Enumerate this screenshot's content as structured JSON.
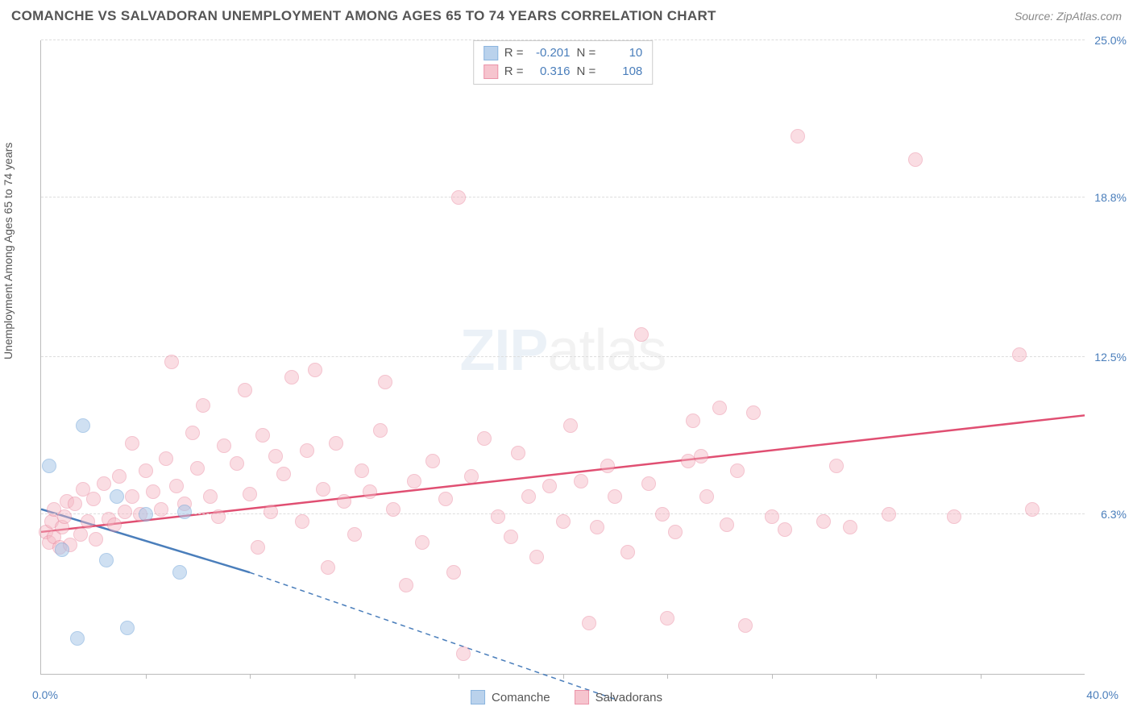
{
  "title": "COMANCHE VS SALVADORAN UNEMPLOYMENT AMONG AGES 65 TO 74 YEARS CORRELATION CHART",
  "source": "Source: ZipAtlas.com",
  "watermark": {
    "prefix": "ZIP",
    "suffix": "atlas"
  },
  "chart": {
    "type": "scatter",
    "y_axis_label": "Unemployment Among Ages 65 to 74 years",
    "xlim": [
      0,
      40
    ],
    "ylim": [
      0,
      25
    ],
    "x_start_label": "0.0%",
    "x_end_label": "40.0%",
    "ytick_labels": [
      "6.3%",
      "12.5%",
      "18.8%",
      "25.0%"
    ],
    "ytick_values": [
      6.3,
      12.5,
      18.8,
      25.0
    ],
    "xtick_values": [
      4,
      8,
      12,
      16,
      20,
      24,
      28,
      32,
      36
    ],
    "grid_color": "#dddddd",
    "axis_color": "#bbbbbb",
    "background_color": "#ffffff",
    "series": [
      {
        "name": "Comanche",
        "label": "Comanche",
        "R_label": "R =",
        "R": "-0.201",
        "N_label": "N =",
        "N": "10",
        "fill_color": "#a9c7e8",
        "fill_opacity": 0.55,
        "stroke_color": "#6fa3d8",
        "line_color": "#4a7ebb",
        "marker_radius": 9,
        "trend": {
          "x1": 0,
          "y1": 6.5,
          "x2": 8,
          "y2": 4.0,
          "solid_until_x": 8,
          "extend_x": 22,
          "extend_y": -1
        },
        "points": [
          [
            0.3,
            8.2
          ],
          [
            0.8,
            4.9
          ],
          [
            1.4,
            1.4
          ],
          [
            1.6,
            9.8
          ],
          [
            2.5,
            4.5
          ],
          [
            2.9,
            7.0
          ],
          [
            3.3,
            1.8
          ],
          [
            4.0,
            6.3
          ],
          [
            5.3,
            4.0
          ],
          [
            5.5,
            6.4
          ]
        ]
      },
      {
        "name": "Salvadorans",
        "label": "Salvadorans",
        "R_label": "R =",
        "R": "0.316",
        "N_label": "N =",
        "N": "108",
        "fill_color": "#f4b6c2",
        "fill_opacity": 0.45,
        "stroke_color": "#e77a94",
        "line_color": "#e04f72",
        "marker_radius": 9,
        "trend": {
          "x1": 0,
          "y1": 5.6,
          "x2": 40,
          "y2": 10.2,
          "solid_until_x": 40
        },
        "points": [
          [
            0.2,
            5.6
          ],
          [
            0.3,
            5.2
          ],
          [
            0.4,
            6.0
          ],
          [
            0.5,
            5.4
          ],
          [
            0.5,
            6.5
          ],
          [
            0.7,
            5.0
          ],
          [
            0.8,
            5.8
          ],
          [
            0.9,
            6.2
          ],
          [
            1.0,
            6.8
          ],
          [
            1.1,
            5.1
          ],
          [
            1.3,
            6.7
          ],
          [
            1.5,
            5.5
          ],
          [
            1.6,
            7.3
          ],
          [
            1.8,
            6.0
          ],
          [
            2.0,
            6.9
          ],
          [
            2.1,
            5.3
          ],
          [
            2.4,
            7.5
          ],
          [
            2.6,
            6.1
          ],
          [
            2.8,
            5.9
          ],
          [
            3.0,
            7.8
          ],
          [
            3.2,
            6.4
          ],
          [
            3.5,
            7.0
          ],
          [
            3.5,
            9.1
          ],
          [
            3.8,
            6.3
          ],
          [
            4.0,
            8.0
          ],
          [
            4.3,
            7.2
          ],
          [
            4.6,
            6.5
          ],
          [
            4.8,
            8.5
          ],
          [
            5.0,
            12.3
          ],
          [
            5.2,
            7.4
          ],
          [
            5.5,
            6.7
          ],
          [
            5.8,
            9.5
          ],
          [
            6.0,
            8.1
          ],
          [
            6.2,
            10.6
          ],
          [
            6.5,
            7.0
          ],
          [
            6.8,
            6.2
          ],
          [
            7.0,
            9.0
          ],
          [
            7.5,
            8.3
          ],
          [
            7.8,
            11.2
          ],
          [
            8.0,
            7.1
          ],
          [
            8.3,
            5.0
          ],
          [
            8.5,
            9.4
          ],
          [
            8.8,
            6.4
          ],
          [
            9.0,
            8.6
          ],
          [
            9.3,
            7.9
          ],
          [
            9.6,
            11.7
          ],
          [
            10.0,
            6.0
          ],
          [
            10.2,
            8.8
          ],
          [
            10.5,
            12.0
          ],
          [
            10.8,
            7.3
          ],
          [
            11.0,
            4.2
          ],
          [
            11.3,
            9.1
          ],
          [
            11.6,
            6.8
          ],
          [
            12.0,
            5.5
          ],
          [
            12.3,
            8.0
          ],
          [
            12.6,
            7.2
          ],
          [
            13.0,
            9.6
          ],
          [
            13.2,
            11.5
          ],
          [
            13.5,
            6.5
          ],
          [
            14.0,
            3.5
          ],
          [
            14.3,
            7.6
          ],
          [
            14.6,
            5.2
          ],
          [
            15.0,
            8.4
          ],
          [
            15.5,
            6.9
          ],
          [
            15.8,
            4.0
          ],
          [
            16.0,
            18.8
          ],
          [
            16.2,
            0.8
          ],
          [
            16.5,
            7.8
          ],
          [
            17.0,
            9.3
          ],
          [
            17.5,
            6.2
          ],
          [
            18.0,
            5.4
          ],
          [
            18.3,
            8.7
          ],
          [
            18.7,
            7.0
          ],
          [
            19.0,
            4.6
          ],
          [
            19.5,
            7.4
          ],
          [
            20.0,
            6.0
          ],
          [
            20.3,
            9.8
          ],
          [
            20.7,
            7.6
          ],
          [
            21.0,
            2.0
          ],
          [
            21.3,
            5.8
          ],
          [
            21.7,
            8.2
          ],
          [
            22.0,
            7.0
          ],
          [
            22.5,
            4.8
          ],
          [
            23.0,
            13.4
          ],
          [
            23.3,
            7.5
          ],
          [
            23.8,
            6.3
          ],
          [
            24.0,
            2.2
          ],
          [
            24.3,
            5.6
          ],
          [
            24.8,
            8.4
          ],
          [
            25.0,
            10.0
          ],
          [
            25.3,
            8.6
          ],
          [
            25.5,
            7.0
          ],
          [
            26.0,
            10.5
          ],
          [
            26.3,
            5.9
          ],
          [
            26.7,
            8.0
          ],
          [
            27.0,
            1.9
          ],
          [
            27.3,
            10.3
          ],
          [
            28.0,
            6.2
          ],
          [
            28.5,
            5.7
          ],
          [
            29.0,
            21.2
          ],
          [
            30.0,
            6.0
          ],
          [
            30.5,
            8.2
          ],
          [
            31.0,
            5.8
          ],
          [
            32.5,
            6.3
          ],
          [
            33.5,
            20.3
          ],
          [
            35.0,
            6.2
          ],
          [
            37.5,
            12.6
          ],
          [
            38.0,
            6.5
          ]
        ]
      }
    ]
  },
  "colors": {
    "title": "#555555",
    "source": "#888888",
    "tick_label": "#4a7ebb"
  }
}
